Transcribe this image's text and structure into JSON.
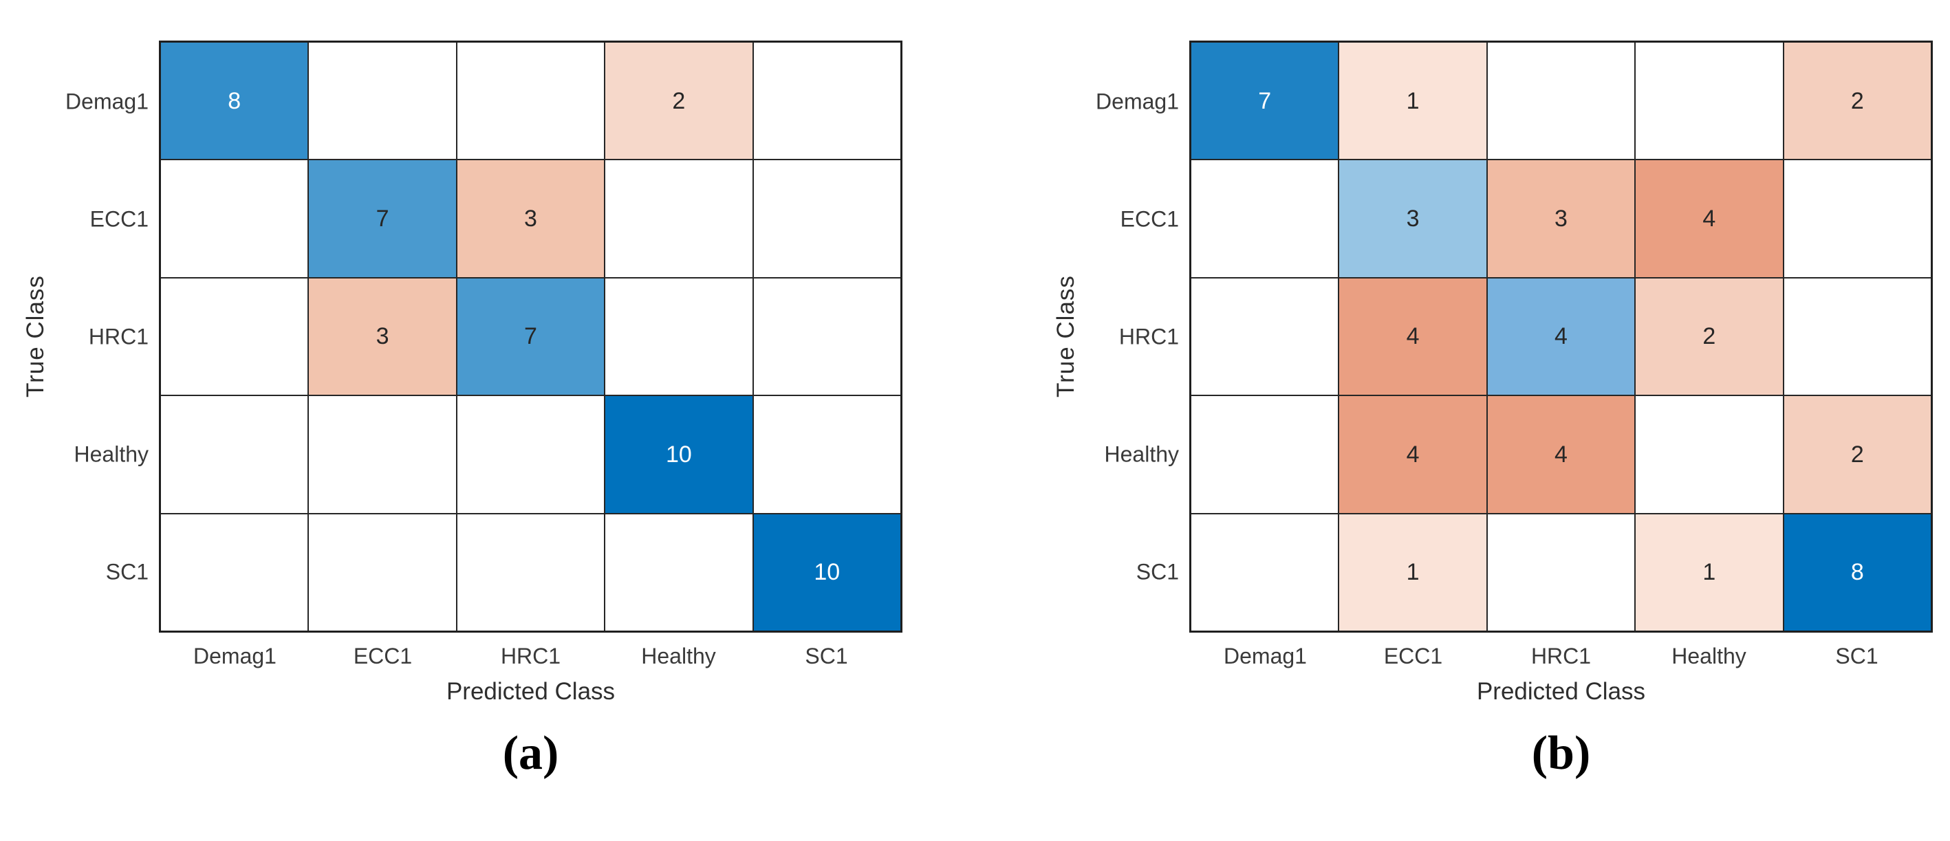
{
  "figure": {
    "description": "Two MATLAB-style confusion matrix charts side by side",
    "background": "#ffffff",
    "grid_line_color": "#262626",
    "diagonal_base_color": "#0072BD",
    "offdiagonal_base_color": "#D95319"
  },
  "chart_data": [
    {
      "type": "heatmap",
      "subtype": "confusion-matrix",
      "caption": "(a)",
      "xlabel": "Predicted Class",
      "ylabel": "True Class",
      "classes": [
        "Demag1",
        "ECC1",
        "HRC1",
        "Healthy",
        "SC1"
      ],
      "matrix": [
        [
          8,
          0,
          0,
          2,
          0
        ],
        [
          0,
          7,
          3,
          0,
          0
        ],
        [
          0,
          3,
          7,
          0,
          0
        ],
        [
          0,
          0,
          0,
          10,
          0
        ],
        [
          0,
          0,
          0,
          0,
          10
        ]
      ],
      "cell_colors": [
        [
          "#338ECA",
          "#FFFFFF",
          "#FFFFFF",
          "#F6D8CA",
          "#FFFFFF"
        ],
        [
          "#FFFFFF",
          "#4A9ACF",
          "#F2C4AE",
          "#FFFFFF",
          "#FFFFFF"
        ],
        [
          "#FFFFFF",
          "#F2C4AE",
          "#4A9ACF",
          "#FFFFFF",
          "#FFFFFF"
        ],
        [
          "#FFFFFF",
          "#FFFFFF",
          "#FFFFFF",
          "#0072BD",
          "#FFFFFF"
        ],
        [
          "#FFFFFF",
          "#FFFFFF",
          "#FFFFFF",
          "#FFFFFF",
          "#0072BD"
        ]
      ],
      "cell_text_colors": [
        [
          "#FFFFFF",
          "#262626",
          "#262626",
          "#262626",
          "#262626"
        ],
        [
          "#262626",
          "#262626",
          "#262626",
          "#262626",
          "#262626"
        ],
        [
          "#262626",
          "#262626",
          "#262626",
          "#262626",
          "#262626"
        ],
        [
          "#262626",
          "#262626",
          "#262626",
          "#FFFFFF",
          "#262626"
        ],
        [
          "#262626",
          "#262626",
          "#262626",
          "#262626",
          "#FFFFFF"
        ]
      ]
    },
    {
      "type": "heatmap",
      "subtype": "confusion-matrix",
      "caption": "(b)",
      "xlabel": "Predicted Class",
      "ylabel": "True Class",
      "classes": [
        "Demag1",
        "ECC1",
        "HRC1",
        "Healthy",
        "SC1"
      ],
      "matrix": [
        [
          7,
          1,
          0,
          0,
          2
        ],
        [
          0,
          3,
          3,
          4,
          0
        ],
        [
          0,
          4,
          4,
          2,
          0
        ],
        [
          0,
          4,
          4,
          0,
          2
        ],
        [
          0,
          1,
          0,
          1,
          8
        ]
      ],
      "cell_colors": [
        [
          "#1E82C4",
          "#FAE3D8",
          "#FFFFFF",
          "#FFFFFF",
          "#F4CFBE"
        ],
        [
          "#FFFFFF",
          "#97C5E4",
          "#F1BBA3",
          "#EA9F82",
          "#FFFFFF"
        ],
        [
          "#FFFFFF",
          "#EA9F82",
          "#79B2DE",
          "#F4CFBE",
          "#FFFFFF"
        ],
        [
          "#FFFFFF",
          "#EA9F82",
          "#EA9F82",
          "#FFFFFF",
          "#F4CFBE"
        ],
        [
          "#FFFFFF",
          "#FAE3D8",
          "#FFFFFF",
          "#FAE3D8",
          "#0072BD"
        ]
      ],
      "cell_text_colors": [
        [
          "#FFFFFF",
          "#262626",
          "#262626",
          "#262626",
          "#262626"
        ],
        [
          "#262626",
          "#262626",
          "#262626",
          "#262626",
          "#262626"
        ],
        [
          "#262626",
          "#262626",
          "#262626",
          "#262626",
          "#262626"
        ],
        [
          "#262626",
          "#262626",
          "#262626",
          "#262626",
          "#262626"
        ],
        [
          "#262626",
          "#262626",
          "#262626",
          "#262626",
          "#FFFFFF"
        ]
      ]
    }
  ]
}
